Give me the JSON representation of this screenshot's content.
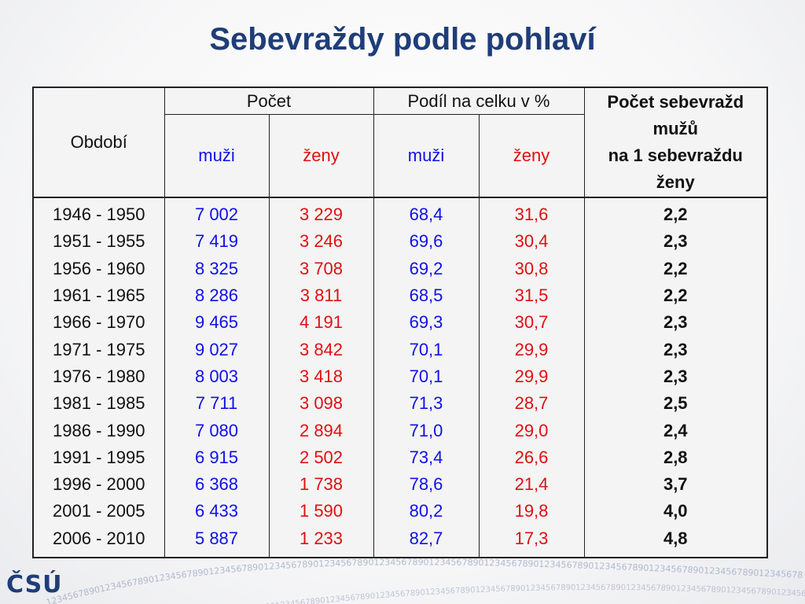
{
  "title": "Sebevraždy podle pohlaví",
  "logo_text": "ČSÚ",
  "chart_data": {
    "type": "table",
    "header": {
      "period": "Období",
      "count_group": "Počet",
      "share_group": "Podíl na celku v %",
      "ratio": [
        "Počet sebevražd",
        "mužů",
        "na 1 sebevraždu",
        "ženy"
      ],
      "men": "muži",
      "women": "ženy"
    },
    "rows": [
      {
        "period": "1946 - 1950",
        "men": "7 002",
        "women": "3 229",
        "men_pct": "68,4",
        "women_pct": "31,6",
        "ratio": "2,2"
      },
      {
        "period": "1951 - 1955",
        "men": "7 419",
        "women": "3 246",
        "men_pct": "69,6",
        "women_pct": "30,4",
        "ratio": "2,3"
      },
      {
        "period": "1956 - 1960",
        "men": "8 325",
        "women": "3 708",
        "men_pct": "69,2",
        "women_pct": "30,8",
        "ratio": "2,2"
      },
      {
        "period": "1961 - 1965",
        "men": "8 286",
        "women": "3 811",
        "men_pct": "68,5",
        "women_pct": "31,5",
        "ratio": "2,2"
      },
      {
        "period": "1966 - 1970",
        "men": "9 465",
        "women": "4 191",
        "men_pct": "69,3",
        "women_pct": "30,7",
        "ratio": "2,3"
      },
      {
        "period": "1971 - 1975",
        "men": "9 027",
        "women": "3 842",
        "men_pct": "70,1",
        "women_pct": "29,9",
        "ratio": "2,3"
      },
      {
        "period": "1976 - 1980",
        "men": "8 003",
        "women": "3 418",
        "men_pct": "70,1",
        "women_pct": "29,9",
        "ratio": "2,3"
      },
      {
        "period": "1981 - 1985",
        "men": "7 711",
        "women": "3 098",
        "men_pct": "71,3",
        "women_pct": "28,7",
        "ratio": "2,5"
      },
      {
        "period": "1986 - 1990",
        "men": "7 080",
        "women": "2 894",
        "men_pct": "71,0",
        "women_pct": "29,0",
        "ratio": "2,4"
      },
      {
        "period": "1991 - 1995",
        "men": "6 915",
        "women": "2 502",
        "men_pct": "73,4",
        "women_pct": "26,6",
        "ratio": "2,8"
      },
      {
        "period": "1996 - 2000",
        "men": "6 368",
        "women": "1 738",
        "men_pct": "78,6",
        "women_pct": "21,4",
        "ratio": "3,7"
      },
      {
        "period": "2001 - 2005",
        "men": "6 433",
        "women": "1 590",
        "men_pct": "80,2",
        "women_pct": "19,8",
        "ratio": "4,0"
      },
      {
        "period": "2006 - 2010",
        "men": "5 887",
        "women": "1 233",
        "men_pct": "82,7",
        "women_pct": "17,3",
        "ratio": "4,8"
      }
    ]
  },
  "colors": {
    "title": "#1f3d78",
    "men": "#1010e8",
    "women": "#e01010"
  }
}
